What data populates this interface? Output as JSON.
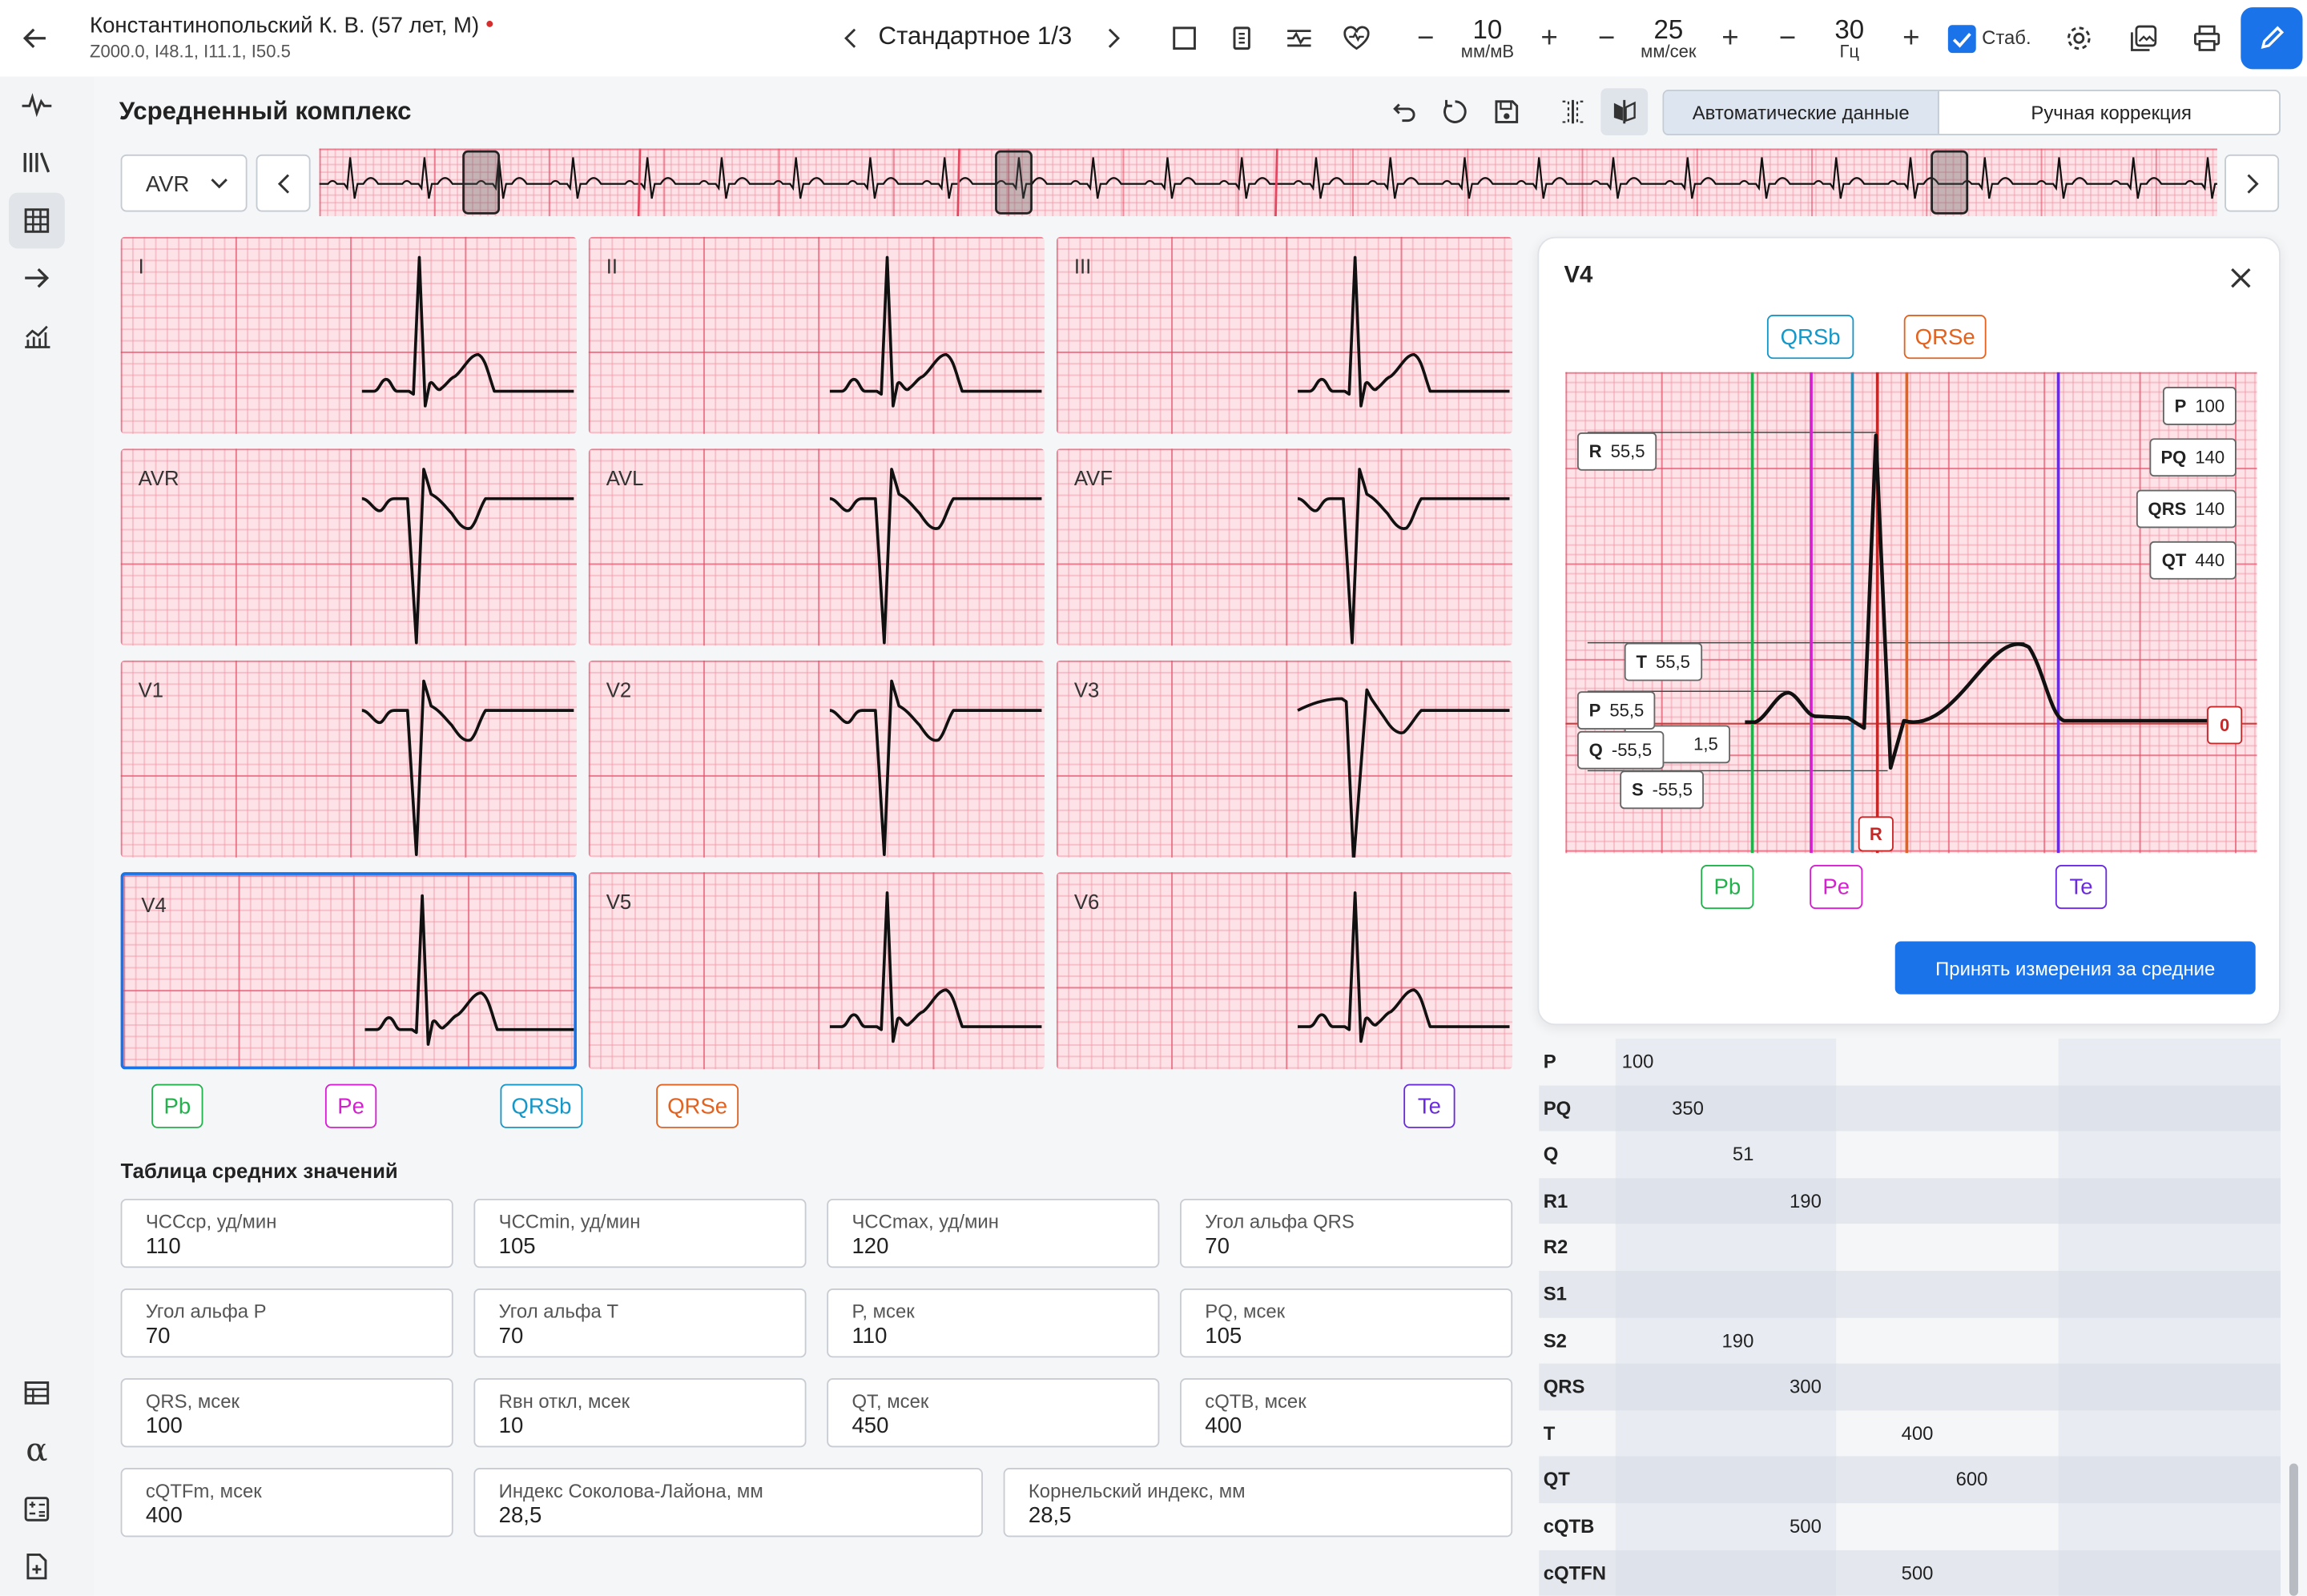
{
  "header": {
    "patient_name": "Константинопольский К. В. (57 лет, М)",
    "diagnoses": "Z000.0, I48.1, I11.1, I50.5",
    "mode_label": "Стандартное 1/3",
    "amp": {
      "value": "10",
      "unit": "мм/мВ"
    },
    "speed": {
      "value": "25",
      "unit": "мм/сек"
    },
    "filter": {
      "value": "30",
      "unit": "Гц"
    },
    "stab_label": "Стаб.",
    "stab_checked": true
  },
  "section_title": "Усредненный комплекс",
  "tabs": {
    "auto": "Автоматические данные",
    "manual": "Ручная коррекция",
    "active": "auto"
  },
  "lead_select": {
    "value": "AVR"
  },
  "leads": [
    "I",
    "II",
    "III",
    "AVR",
    "AVL",
    "AVF",
    "V1",
    "V2",
    "V3",
    "V4",
    "V5",
    "V6"
  ],
  "selected_lead": "V4",
  "markers": {
    "pb": "Pb",
    "pe": "Pe",
    "qrsb": "QRSb",
    "qrse": "QRSe",
    "te": "Te"
  },
  "avg_table": {
    "title": "Таблица средних значений",
    "rows": [
      [
        {
          "label": "ЧССср, уд/мин",
          "value": "110"
        },
        {
          "label": "ЧССmin, уд/мин",
          "value": "105"
        },
        {
          "label": "ЧССmax, уд/мин",
          "value": "120"
        },
        {
          "label": "Угол альфа QRS",
          "value": "70"
        }
      ],
      [
        {
          "label": "Угол альфа P",
          "value": "70"
        },
        {
          "label": "Угол альфа T",
          "value": "70"
        },
        {
          "label": "P, мсек",
          "value": "110"
        },
        {
          "label": "PQ, мсек",
          "value": "105"
        }
      ],
      [
        {
          "label": "QRS, мсек",
          "value": "100"
        },
        {
          "label": "Rвн откл, мсек",
          "value": "10"
        },
        {
          "label": "QT, мсек",
          "value": "450"
        },
        {
          "label": "cQTB, мсек",
          "value": "400"
        }
      ],
      [
        {
          "label": "cQTFm, мсек",
          "value": "400"
        },
        {
          "label": "Индекс Соколова-Лайона, мм",
          "value": "28,5"
        },
        {
          "label": "Корнельский индекс, мм",
          "value": "28,5"
        }
      ]
    ]
  },
  "side_table": [
    {
      "name": "P",
      "value": "100",
      "col": 0
    },
    {
      "name": "PQ",
      "value": "350",
      "col": 0
    },
    {
      "name": "Q",
      "value": "51",
      "col": 0
    },
    {
      "name": "R1",
      "value": "190",
      "col": 0
    },
    {
      "name": "R2",
      "value": "",
      "col": 0
    },
    {
      "name": "S1",
      "value": "",
      "col": 0
    },
    {
      "name": "S2",
      "value": "190",
      "col": 0
    },
    {
      "name": "QRS",
      "value": "300",
      "col": 0
    },
    {
      "name": "T",
      "value": "400",
      "col": 1
    },
    {
      "name": "QT",
      "value": "600",
      "col": 1
    },
    {
      "name": "cQTB",
      "value": "500",
      "col": 0
    },
    {
      "name": "cQTFN",
      "value": "500",
      "col": 1
    }
  ],
  "popup": {
    "title": "V4",
    "top_markers": {
      "qrsb": "QRSb",
      "qrse": "QRSe"
    },
    "intervals": [
      {
        "name": "P",
        "value": "100"
      },
      {
        "name": "PQ",
        "value": "140"
      },
      {
        "name": "QRS",
        "value": "140"
      },
      {
        "name": "QT",
        "value": "440"
      }
    ],
    "amplitudes": {
      "r": {
        "name": "R",
        "value": "55,5"
      },
      "t": {
        "name": "T",
        "value": "55,5"
      },
      "p": {
        "name": "P",
        "value": "55,5"
      },
      "hidden": {
        "value": "1,5"
      },
      "q": {
        "name": "Q",
        "value": "-55,5"
      },
      "s": {
        "name": "S",
        "value": "-55,5"
      }
    },
    "zero_label": "0",
    "r_label": "R",
    "bottom_markers": {
      "pb": "Pb",
      "pe": "Pe",
      "te": "Te"
    },
    "accept_button": "Принять измерения за средние"
  },
  "colors": {
    "accent": "#1a73e8",
    "grid": "#fde2e7",
    "pb": "#22b24c",
    "pe": "#d61fd0",
    "qrsb": "#1597c8",
    "qrse": "#e3621f",
    "r": "#c62828",
    "te": "#6a2ae0"
  }
}
